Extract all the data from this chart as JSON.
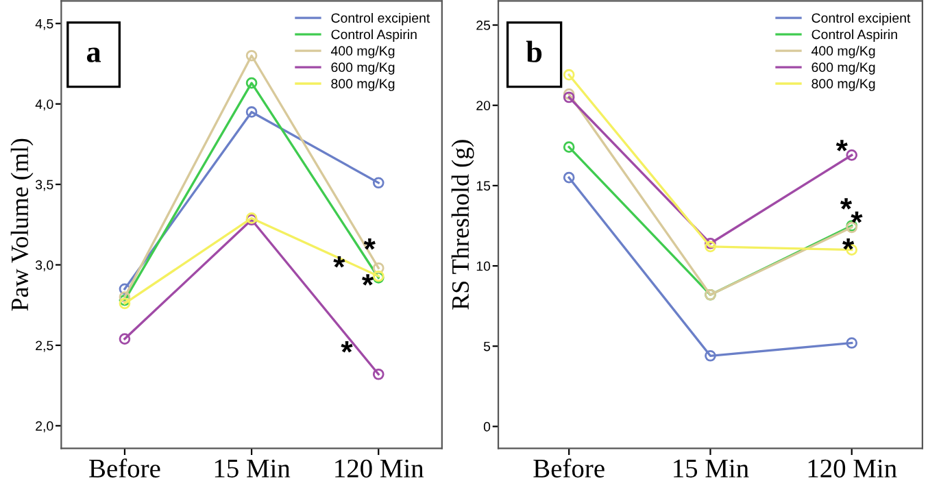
{
  "chart_data": [
    {
      "type": "line",
      "title": "a",
      "ylabel": "Paw Volume (ml)",
      "categories": [
        "Before",
        "15 Min",
        "120 Min"
      ],
      "series": [
        {
          "name": "Control excipient",
          "color": "#6a7fc8",
          "values": [
            2.85,
            3.95,
            3.51
          ]
        },
        {
          "name": "Control Aspirin",
          "color": "#3fcb4f",
          "values": [
            2.78,
            4.13,
            2.92
          ]
        },
        {
          "name": "400 mg/Kg",
          "color": "#d8c99a",
          "values": [
            2.8,
            4.3,
            2.98
          ]
        },
        {
          "name": "600 mg/Kg",
          "color": "#a04aa6",
          "values": [
            2.54,
            3.28,
            2.32
          ]
        },
        {
          "name": "800 mg/Kg",
          "color": "#f4f060",
          "values": [
            2.76,
            3.29,
            2.93
          ]
        }
      ],
      "ylim": [
        1.86,
        4.64
      ],
      "yticks": [
        {
          "value": 2.0,
          "label": "2,0"
        },
        {
          "value": 2.5,
          "label": "2,5"
        },
        {
          "value": 3.0,
          "label": "3,0"
        },
        {
          "value": 3.5,
          "label": "3,5"
        },
        {
          "value": 4.0,
          "label": "4,0"
        },
        {
          "value": 4.5,
          "label": "4,5"
        }
      ],
      "annotations": [
        "*",
        "*",
        "*",
        "*"
      ],
      "marker": "circle",
      "line_style": "solid",
      "legend": "top right",
      "grid": false
    },
    {
      "type": "line",
      "title": "b",
      "ylabel": "RS Threshold (g)",
      "categories": [
        "Before",
        "15 Min",
        "120 Min"
      ],
      "series": [
        {
          "name": "Control excipient",
          "color": "#6a7fc8",
          "values": [
            15.5,
            4.4,
            5.2
          ]
        },
        {
          "name": "Control Aspirin",
          "color": "#3fcb4f",
          "values": [
            17.4,
            8.2,
            12.5
          ]
        },
        {
          "name": "400 mg/Kg",
          "color": "#d8c99a",
          "values": [
            20.7,
            8.2,
            12.4
          ]
        },
        {
          "name": "600 mg/Kg",
          "color": "#a04aa6",
          "values": [
            20.5,
            11.4,
            16.9
          ]
        },
        {
          "name": "800 mg/Kg",
          "color": "#f4f060",
          "values": [
            21.9,
            11.2,
            11.0
          ]
        }
      ],
      "ylim": [
        -1.36,
        26.5
      ],
      "yticks": [
        0,
        5,
        10,
        15,
        20,
        25
      ],
      "annotations": [
        "*",
        "*",
        "*",
        "*"
      ],
      "marker": "circle",
      "line_style": "solid",
      "legend": "top right",
      "grid": false
    }
  ]
}
